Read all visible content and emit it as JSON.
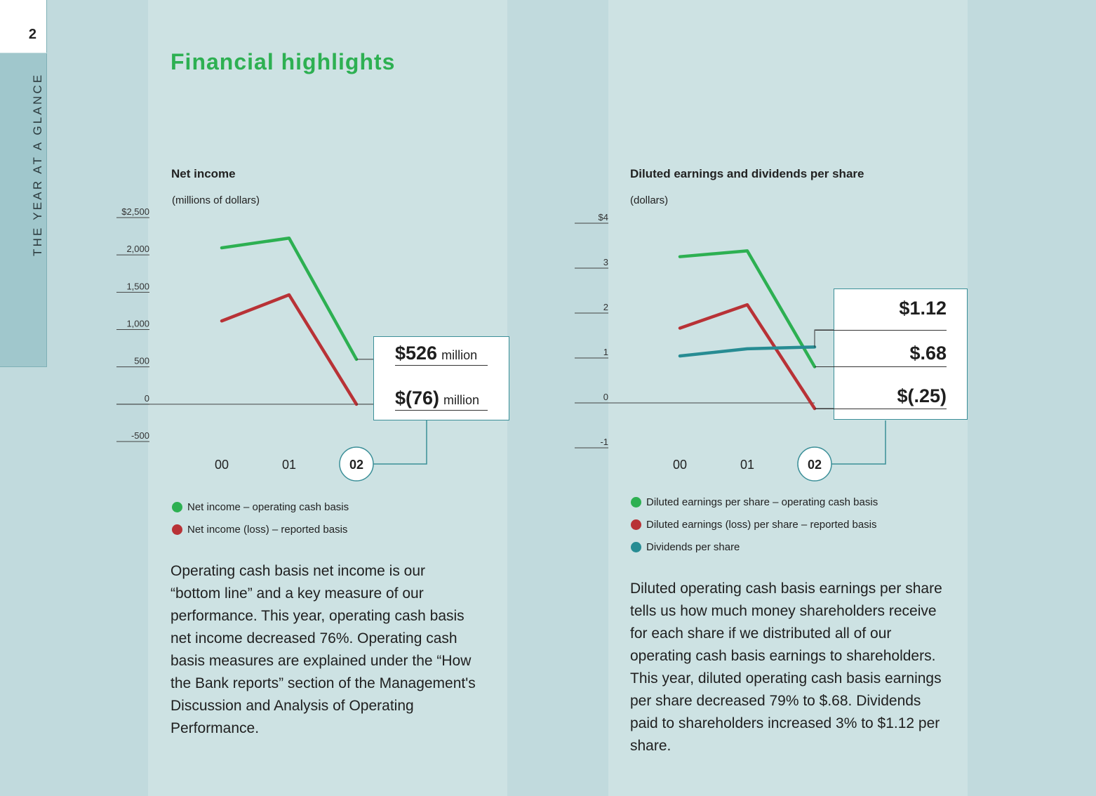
{
  "page": {
    "number": "2",
    "section_label": "THE YEAR AT A GLANCE",
    "title": "Financial highlights"
  },
  "colors": {
    "green": "#2db052",
    "red": "#b83236",
    "teal": "#278c93",
    "panel": "#cde2e3",
    "background": "#c1dadd"
  },
  "chart_data": [
    {
      "type": "line",
      "title": "Net income",
      "subtitle": "(millions of dollars)",
      "x": [
        "00",
        "01",
        "02"
      ],
      "highlight_x": "02",
      "y_ticks": [
        "$2,500",
        "2,000",
        "1,500",
        "1,000",
        "500",
        "0",
        "-500"
      ],
      "ylim": [
        -500,
        2500
      ],
      "grid": false,
      "series": [
        {
          "name": "Net income – operating cash basis",
          "color": "#2db052",
          "values": [
            2020,
            2150,
            526
          ]
        },
        {
          "name": "Net income (loss) – reported basis",
          "color": "#b83236",
          "values": [
            1040,
            1390,
            -76
          ]
        }
      ],
      "callouts": [
        {
          "value": "$526",
          "unit": "million"
        },
        {
          "value": "$(76)",
          "unit": "million"
        }
      ]
    },
    {
      "type": "line",
      "title": "Diluted earnings and dividends per share",
      "subtitle": "(dollars)",
      "x": [
        "00",
        "01",
        "02"
      ],
      "highlight_x": "02",
      "y_ticks": [
        "$4",
        "3",
        "2",
        "1",
        "0",
        "-1"
      ],
      "ylim": [
        -1,
        4
      ],
      "grid": false,
      "series": [
        {
          "name": "Diluted earnings per share – operating cash basis",
          "color": "#2db052",
          "values": [
            3.13,
            3.26,
            0.68
          ]
        },
        {
          "name": "Diluted earnings (loss) per share – reported basis",
          "color": "#b83236",
          "values": [
            1.54,
            2.06,
            -0.25
          ]
        },
        {
          "name": "Dividends per share",
          "color": "#278c93",
          "values": [
            0.92,
            1.08,
            1.12
          ]
        }
      ],
      "callouts": [
        {
          "value": "$1.12",
          "unit": ""
        },
        {
          "value": "$.68",
          "unit": ""
        },
        {
          "value": "$(.25)",
          "unit": ""
        }
      ]
    }
  ],
  "text": {
    "net_income_paragraph": "Operating cash basis net income is our “bottom line” and a key measure of our performance. This year, operating cash basis net income decreased 76%. Operating cash basis measures are explained under the “How the Bank reports” section of the Management's Discussion and Analysis of Operating Performance.",
    "eps_paragraph": "Diluted operating cash basis earnings per share tells us how much money shareholders receive for each share if we distributed all of our operating cash basis earnings to shareholders. This year, diluted operating cash basis earnings per share decreased 79% to $.68. Dividends paid to shareholders increased 3% to $1.12 per share."
  }
}
